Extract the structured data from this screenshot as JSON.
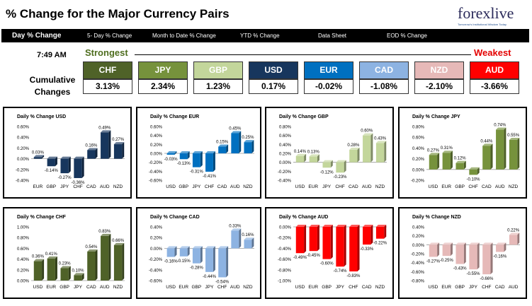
{
  "title": "% Change for the Major Currency Pairs",
  "logo": {
    "text": "forexlive",
    "tagline": "Tomorrow's Institutional Wisdom Today"
  },
  "tabs": [
    "Day % Change",
    "5- Day % Change",
    "Month to Date % Change",
    "YTD % Change",
    "Data Sheet",
    "EOD % Change"
  ],
  "time": "7:49 AM",
  "strongest_label": "Strongest",
  "weakest_label": "Weakest",
  "cumulative_label": "Cumulative Changes",
  "currencies": [
    {
      "name": "CHF",
      "pct": "3.13%",
      "color": "#4f6228"
    },
    {
      "name": "JPY",
      "pct": "2.34%",
      "color": "#76923c"
    },
    {
      "name": "GBP",
      "pct": "1.23%",
      "color": "#c3d69b"
    },
    {
      "name": "USD",
      "pct": "0.17%",
      "color": "#17365d"
    },
    {
      "name": "EUR",
      "pct": "-0.02%",
      "color": "#0070c0"
    },
    {
      "name": "CAD",
      "pct": "-1.08%",
      "color": "#8db3e2"
    },
    {
      "name": "NZD",
      "pct": "-2.10%",
      "color": "#e6b9b8"
    },
    {
      "name": "AUD",
      "pct": "-3.66%",
      "color": "#ff0000"
    }
  ],
  "chart_data": [
    {
      "type": "bar",
      "title": "Daily % Change USD",
      "categories": [
        "EUR",
        "GBP",
        "JPY",
        "CHF",
        "CAD",
        "AUD",
        "NZD"
      ],
      "values": [
        0.03,
        -0.14,
        -0.27,
        -0.36,
        0.16,
        0.49,
        0.27
      ],
      "labels": [
        "0.03%",
        "-0.14%",
        "-0.27%",
        "-0.36%",
        "0.16%",
        "0.49%",
        "0.27%"
      ],
      "ylim": [
        -0.4,
        0.6
      ],
      "step": 0.2,
      "ticks": [
        "-0.40%",
        "-0.20%",
        "0.00%",
        "0.20%",
        "0.40%",
        "0.60%"
      ],
      "color": "#17365d"
    },
    {
      "type": "bar",
      "title": "Daily % Change EUR",
      "categories": [
        "USD",
        "GBP",
        "JPY",
        "CHF",
        "CAD",
        "AUD",
        "NZD"
      ],
      "values": [
        -0.03,
        -0.13,
        -0.31,
        -0.41,
        0.15,
        0.45,
        0.25
      ],
      "labels": [
        "-0.03%",
        "-0.13%",
        "-0.31%",
        "-0.41%",
        "0.15%",
        "0.45%",
        "0.25%"
      ],
      "ylim": [
        -0.6,
        0.6
      ],
      "step": 0.2,
      "ticks": [
        "-0.60%",
        "-0.40%",
        "-0.20%",
        "0.00%",
        "0.20%",
        "0.40%",
        "0.60%"
      ],
      "color": "#0070c0"
    },
    {
      "type": "bar",
      "title": "Daily % Change GBP",
      "categories": [
        "USD",
        "EUR",
        "JPY",
        "CHF",
        "CAD",
        "AUD",
        "NZD"
      ],
      "values": [
        0.14,
        0.13,
        -0.12,
        -0.23,
        0.28,
        0.6,
        0.43
      ],
      "labels": [
        "0.14%",
        "0.13%",
        "-0.12%",
        "-0.23%",
        "0.28%",
        "0.60%",
        "0.43%"
      ],
      "ylim": [
        -0.4,
        0.8
      ],
      "step": 0.2,
      "ticks": [
        "-0.40%",
        "-0.20%",
        "0.00%",
        "0.20%",
        "0.40%",
        "0.60%",
        "0.80%"
      ],
      "color": "#c3d69b"
    },
    {
      "type": "bar",
      "title": "Daily % Change JPY",
      "categories": [
        "USD",
        "EUR",
        "GBP",
        "CHF",
        "CAD",
        "AUD",
        "NZD"
      ],
      "values": [
        0.27,
        0.31,
        0.12,
        -0.1,
        0.44,
        0.74,
        0.55
      ],
      "labels": [
        "0.27%",
        "0.31%",
        "0.12%",
        "-0.10%",
        "0.44%",
        "0.74%",
        "0.55%"
      ],
      "ylim": [
        -0.2,
        0.8
      ],
      "step": 0.2,
      "ticks": [
        "-0.20%",
        "0.00%",
        "0.20%",
        "0.40%",
        "0.60%",
        "0.80%"
      ],
      "color": "#76923c"
    },
    {
      "type": "bar",
      "title": "Daily % Change CHF",
      "categories": [
        "USD",
        "EUR",
        "GBP",
        "JPY",
        "CAD",
        "AUD",
        "NZD"
      ],
      "values": [
        0.36,
        0.41,
        0.23,
        0.1,
        0.54,
        0.83,
        0.66
      ],
      "labels": [
        "0.36%",
        "0.41%",
        "0.23%",
        "0.10%",
        "0.54%",
        "0.83%",
        "0.66%"
      ],
      "ylim": [
        0,
        1
      ],
      "step": 0.2,
      "ticks": [
        "0.00%",
        "0.20%",
        "0.40%",
        "0.60%",
        "0.80%",
        "1.00%"
      ],
      "color": "#4f6228"
    },
    {
      "type": "bar",
      "title": "Daily % Change CAD",
      "categories": [
        "USD",
        "EUR",
        "GBP",
        "JPY",
        "CHF",
        "AUD",
        "NZD"
      ],
      "values": [
        -0.16,
        -0.15,
        -0.28,
        -0.44,
        -0.54,
        0.33,
        0.16
      ],
      "labels": [
        "-0.16%",
        "-0.15%",
        "-0.28%",
        "-0.44%",
        "-0.54%",
        "0.33%",
        "0.16%"
      ],
      "ylim": [
        -0.6,
        0.4
      ],
      "step": 0.2,
      "ticks": [
        "-0.60%",
        "-0.40%",
        "-0.20%",
        "0.00%",
        "0.20%",
        "0.40%"
      ],
      "color": "#8db3e2"
    },
    {
      "type": "bar",
      "title": "Daily % Change AUD",
      "categories": [
        "USD",
        "EUR",
        "GBP",
        "JPY",
        "CHF",
        "CAD",
        "NZD"
      ],
      "values": [
        -0.49,
        -0.45,
        -0.6,
        -0.74,
        -0.83,
        -0.33,
        -0.22
      ],
      "labels": [
        "-0.49%",
        "-0.45%",
        "-0.60%",
        "-0.74%",
        "-0.83%",
        "-0.33%",
        "-0.22%"
      ],
      "ylim": [
        -1,
        0
      ],
      "step": 0.2,
      "ticks": [
        "-1.00%",
        "-0.80%",
        "-0.60%",
        "-0.40%",
        "-0.20%",
        "0.00%"
      ],
      "color": "#ff0000"
    },
    {
      "type": "bar",
      "title": "Daily % Change NZD",
      "categories": [
        "USD",
        "EUR",
        "GBP",
        "JPY",
        "CHF",
        "CAD",
        "AUD"
      ],
      "values": [
        -0.27,
        -0.25,
        -0.43,
        -0.55,
        -0.66,
        -0.16,
        0.22
      ],
      "labels": [
        "-0.27%",
        "-0.25%",
        "-0.43%",
        "-0.55%",
        "-0.66%",
        "-0.16%",
        "0.22%"
      ],
      "ylim": [
        -0.8,
        0.4
      ],
      "step": 0.2,
      "ticks": [
        "-0.80%",
        "-0.60%",
        "-0.40%",
        "-0.20%",
        "0.00%",
        "0.20%",
        "0.40%"
      ],
      "color": "#e6b9b8"
    }
  ]
}
